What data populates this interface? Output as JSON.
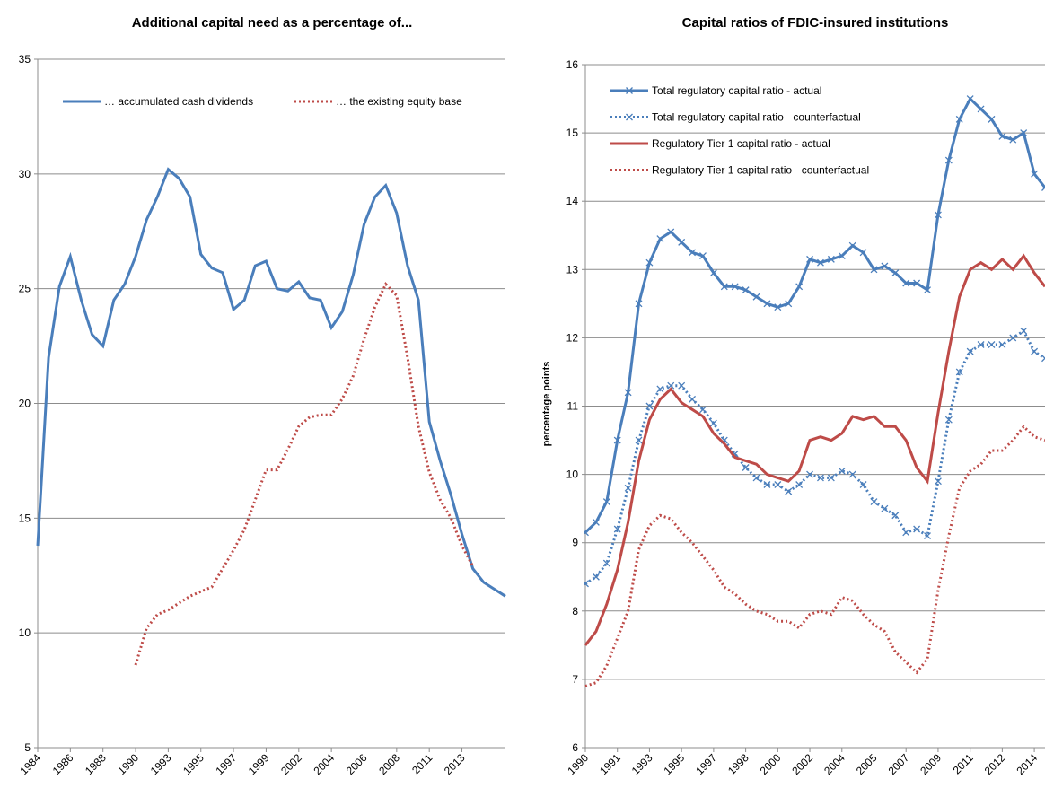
{
  "chart_data": [
    {
      "type": "line",
      "title": "Additional capital need as a percentage of...",
      "categories": [
        "1984",
        null,
        null,
        "1986",
        null,
        null,
        "1988",
        null,
        null,
        "1990",
        null,
        null,
        "1993",
        null,
        null,
        "1995",
        null,
        null,
        "1997",
        null,
        null,
        "1999",
        null,
        null,
        "2002",
        null,
        null,
        "2004",
        null,
        null,
        "2006",
        null,
        null,
        "2008",
        null,
        null,
        "2011",
        null,
        null,
        "2013",
        null,
        null,
        null,
        null
      ],
      "series": [
        {
          "name": "… accumulated cash dividends",
          "color": "#4a7ebb",
          "style": "solid",
          "values": [
            13.8,
            22,
            25.1,
            26.4,
            24.5,
            23,
            22.5,
            24.5,
            25.2,
            26.4,
            28,
            29,
            30.2,
            29.8,
            29,
            26.5,
            25.9,
            25.7,
            24.1,
            24.5,
            26,
            26.2,
            25,
            24.9,
            25.3,
            24.6,
            24.5,
            23.3,
            24,
            25.6,
            27.8,
            29,
            29.5,
            28.3,
            26,
            24.5,
            19.2,
            17.5,
            16,
            14.3,
            12.8,
            12.2,
            11.9,
            11.6
          ]
        },
        {
          "name": "… the existing equity base",
          "color": "#be4b48",
          "style": "dotted",
          "values": [
            null,
            null,
            null,
            null,
            null,
            null,
            null,
            null,
            null,
            8.6,
            10.2,
            10.8,
            11,
            11.3,
            11.6,
            11.8,
            12,
            12.8,
            13.6,
            14.5,
            15.8,
            17.1,
            17.1,
            18,
            19,
            19.4,
            19.5,
            19.5,
            20.2,
            21.2,
            22.8,
            24.2,
            25.2,
            24.7,
            22,
            19,
            17,
            15.8,
            15,
            13.8,
            12.9,
            null,
            null,
            null
          ]
        }
      ],
      "ylim": [
        5,
        35
      ],
      "yticks": [
        5,
        10,
        15,
        20,
        25,
        30,
        35
      ],
      "grid": true,
      "legend": "top"
    },
    {
      "type": "line",
      "title": "Capital ratios of FDIC-insured institutions",
      "y_label": "percentage points",
      "categories": [
        "1990",
        null,
        null,
        "1991",
        null,
        null,
        "1993",
        null,
        null,
        "1995",
        null,
        null,
        "1997",
        null,
        null,
        "1998",
        null,
        null,
        "2000",
        null,
        null,
        "2002",
        null,
        null,
        "2004",
        null,
        null,
        "2005",
        null,
        null,
        "2007",
        null,
        null,
        "2009",
        null,
        null,
        "2011",
        null,
        null,
        "2012",
        null,
        null,
        "2014",
        null
      ],
      "series": [
        {
          "name": "Total regulatory capital ratio - actual",
          "color": "#4a7ebb",
          "style": "solid",
          "marker": "x",
          "values": [
            9.15,
            9.3,
            9.6,
            10.5,
            11.2,
            12.5,
            13.1,
            13.45,
            13.55,
            13.4,
            13.25,
            13.2,
            12.95,
            12.75,
            12.75,
            12.7,
            12.6,
            12.5,
            12.45,
            12.5,
            12.75,
            13.15,
            13.1,
            13.15,
            13.2,
            13.35,
            13.25,
            13,
            13.05,
            12.95,
            12.8,
            12.8,
            12.7,
            13.8,
            14.6,
            15.2,
            15.5,
            15.35,
            15.2,
            14.95,
            14.9,
            15,
            14.4,
            14.2
          ]
        },
        {
          "name": "Total regulatory capital ratio - counterfactual",
          "color": "#4a7ebb",
          "style": "dotted",
          "marker": "x",
          "values": [
            8.4,
            8.5,
            8.7,
            9.2,
            9.8,
            10.5,
            11,
            11.25,
            11.3,
            11.3,
            11.1,
            10.95,
            10.75,
            10.5,
            10.3,
            10.1,
            9.95,
            9.85,
            9.85,
            9.75,
            9.85,
            10,
            9.95,
            9.95,
            10.05,
            10,
            9.85,
            9.6,
            9.5,
            9.4,
            9.15,
            9.2,
            9.1,
            9.9,
            10.8,
            11.5,
            11.8,
            11.9,
            11.9,
            11.9,
            12,
            12.1,
            11.8,
            11.7
          ]
        },
        {
          "name": "Regulatory Tier 1 capital ratio - actual",
          "color": "#be4b48",
          "style": "solid",
          "values": [
            7.5,
            7.7,
            8.1,
            8.6,
            9.3,
            10.2,
            10.8,
            11.1,
            11.25,
            11.05,
            10.95,
            10.85,
            10.6,
            10.45,
            10.25,
            10.2,
            10.15,
            10,
            9.95,
            9.9,
            10.05,
            10.5,
            10.55,
            10.5,
            10.6,
            10.85,
            10.8,
            10.85,
            10.7,
            10.7,
            10.5,
            10.1,
            9.9,
            10.9,
            11.8,
            12.6,
            13,
            13.1,
            13,
            13.15,
            13,
            13.2,
            12.95,
            12.75
          ]
        },
        {
          "name": "Regulatory Tier 1 capital ratio - counterfactual",
          "color": "#be4b48",
          "style": "dotted",
          "values": [
            6.9,
            6.95,
            7.2,
            7.6,
            8,
            8.9,
            9.25,
            9.4,
            9.35,
            9.15,
            9,
            8.8,
            8.6,
            8.35,
            8.25,
            8.1,
            8,
            7.95,
            7.85,
            7.85,
            7.75,
            7.95,
            8,
            7.95,
            8.2,
            8.15,
            7.95,
            7.8,
            7.7,
            7.4,
            7.25,
            7.1,
            7.3,
            8.3,
            9.1,
            9.8,
            10.05,
            10.15,
            10.35,
            10.35,
            10.5,
            10.7,
            10.55,
            10.5
          ]
        }
      ],
      "ylim": [
        6,
        16
      ],
      "yticks": [
        6,
        7,
        8,
        9,
        10,
        11,
        12,
        13,
        14,
        15,
        16
      ],
      "grid": true,
      "legend": "upper left"
    }
  ]
}
